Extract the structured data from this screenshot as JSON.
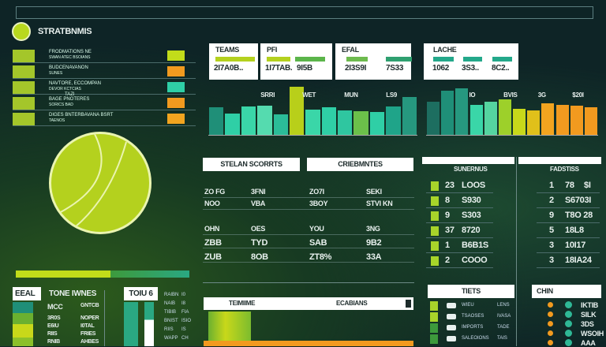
{
  "app": {
    "title": "STRATBNMIS",
    "logo_icon": "tennis-ball-icon"
  },
  "colors": {
    "lime": "#b4d11e",
    "teal": "#2fcfa6",
    "dark_teal": "#1f8f78",
    "orange": "#f29a1f",
    "background": "#0e2426"
  },
  "left_list": [
    {
      "title": "FRODMATIONS NE",
      "sub": "SWAN ATEC BSOIANS"
    },
    {
      "title": "BUDCENAVANON",
      "sub": "SUNES"
    },
    {
      "title": "NAVTORE, ECCOMPAN",
      "sub": "DEVOR KCTCIAS",
      "tag": "TAZI"
    },
    {
      "title": "BAGE PNOTERES",
      "sub": "SORICS BAD"
    },
    {
      "title": "DIGES BNTERBAVANA BSRT",
      "sub": "TAENOS"
    }
  ],
  "stat_cards": [
    {
      "title": "TEAMS",
      "values": [
        "2I7A0B.."
      ]
    },
    {
      "title": "PFI",
      "values": [
        "1I7TAB.",
        "9I5B"
      ]
    },
    {
      "title": "EFAL",
      "values": [
        "2I3S9I",
        "7S33"
      ]
    },
    {
      "title": "LACHE",
      "values": [
        "1062",
        "3S3..",
        "8C2.."
      ]
    }
  ],
  "bar_charts": [
    {
      "labels": [
        "SRRI",
        "WET",
        "MUN",
        "LS9"
      ],
      "values": [
        55,
        42,
        57,
        58,
        40,
        95,
        50,
        55,
        48,
        47,
        45,
        57,
        75
      ]
    },
    {
      "labels": [
        "IO",
        "BVIS",
        "3G",
        "$20I"
      ],
      "values": [
        65,
        88,
        92,
        60,
        65,
        70,
        52,
        48,
        62,
        60,
        58,
        55
      ]
    }
  ],
  "pie": {
    "slices": [
      70,
      30
    ]
  },
  "scores_panel": {
    "headers": [
      "STELAN SCORRTS",
      "CRIEBMNTES"
    ],
    "row1": [
      "ZO FG",
      "3FNI",
      "ZO7I",
      "SEKI"
    ],
    "row2": [
      "NOO",
      "VBA",
      "3BOY",
      "STVI KN"
    ],
    "row3": [
      "OHN",
      "OES",
      "YOU",
      "3NG"
    ],
    "row4": [
      "ZBB",
      "TYD",
      "SAB",
      "9B2"
    ],
    "row5": [
      "ZUB",
      "8OB",
      "ZT8%",
      "33A"
    ]
  },
  "leaderboard_left": {
    "title": "SUNERNUS",
    "rows": [
      [
        "23",
        "LOOS"
      ],
      [
        "8",
        "S930"
      ],
      [
        "9",
        "S303"
      ],
      [
        "37",
        "8720"
      ],
      [
        "1",
        "B6B1S"
      ],
      [
        "2",
        "COOO"
      ]
    ]
  },
  "leaderboard_right": {
    "title": "FADSTISS",
    "rows": [
      [
        "1",
        "78",
        "$I"
      ],
      [
        "2",
        "S6703I"
      ],
      [
        "9",
        "T8O 28"
      ],
      [
        "5",
        "18L8"
      ],
      [
        "3",
        "10I17"
      ],
      [
        "3",
        "18IA24"
      ]
    ]
  },
  "bottom_left": {
    "badge": "EEAL",
    "title": "TONE IWNES",
    "cols": [
      "MCC",
      "GNTCB"
    ],
    "rows": [
      [
        "3R0S",
        "NOPER"
      ],
      [
        "E6IU",
        "I0TAL"
      ],
      [
        "RIIS",
        "FRIES"
      ],
      [
        "RNIB",
        "AHBES"
      ]
    ],
    "badge2": "TOIU 6",
    "side": [
      [
        "RAIBN",
        "I0"
      ],
      [
        "NAIB",
        "I8"
      ],
      [
        "TIBIB",
        "FIA"
      ],
      [
        "BNIST",
        "ISIO"
      ],
      [
        "RIIS",
        "IS"
      ],
      [
        "WAPP",
        "CH"
      ]
    ]
  },
  "timeline_panel": {
    "headers": [
      "TEIMIIME",
      "ECABIANS"
    ]
  },
  "tiets_panel": {
    "title": "TIETS",
    "rows": [
      [
        "WIEU",
        "LENS"
      ],
      [
        "TSAOSES",
        "IVASA"
      ],
      [
        "IMPORTS",
        "TADE"
      ],
      [
        "SALEOIONS",
        "TAIS"
      ]
    ]
  },
  "chin_panel": {
    "title": "CHIN",
    "values": [
      "IKTIB",
      "SILK",
      "3DS",
      "WSOIH",
      "AAA"
    ]
  }
}
